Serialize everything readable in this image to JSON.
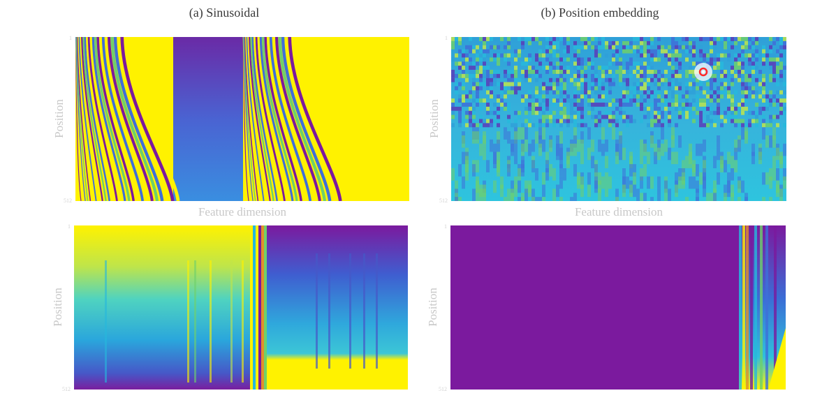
{
  "chart_data": [
    {
      "type": "heatmap",
      "id": "a-top",
      "title": "(a) Sinusoidal",
      "xlabel": "Feature dimension",
      "ylabel": "Position",
      "y_ticks": [
        "1",
        "512"
      ],
      "colormap": "viridis",
      "pattern": "sinusoidal"
    },
    {
      "type": "heatmap",
      "id": "b-top",
      "title": "(b) Position embedding",
      "xlabel": "Feature dimension",
      "ylabel": "Position",
      "y_ticks": [
        "1",
        "512"
      ],
      "colormap": "viridis",
      "pattern": "learned-noise",
      "marker": "red-circle"
    },
    {
      "type": "heatmap",
      "id": "a-bottom",
      "title": "",
      "xlabel": "",
      "ylabel": "Position",
      "y_ticks": [
        "1",
        "512"
      ],
      "colormap": "viridis",
      "pattern": "two-halves"
    },
    {
      "type": "heatmap",
      "id": "b-bottom",
      "title": "",
      "xlabel": "",
      "ylabel": "Position",
      "y_ticks": [
        "1",
        "512"
      ],
      "colormap": "viridis",
      "pattern": "mostly-purple"
    }
  ],
  "colors": {
    "purple": "#7b1a9e",
    "blue": "#3f6fd8",
    "cyan": "#27b8dc",
    "green": "#6fd06a",
    "yellow": "#fff200",
    "marker": "#ff2a2a"
  }
}
